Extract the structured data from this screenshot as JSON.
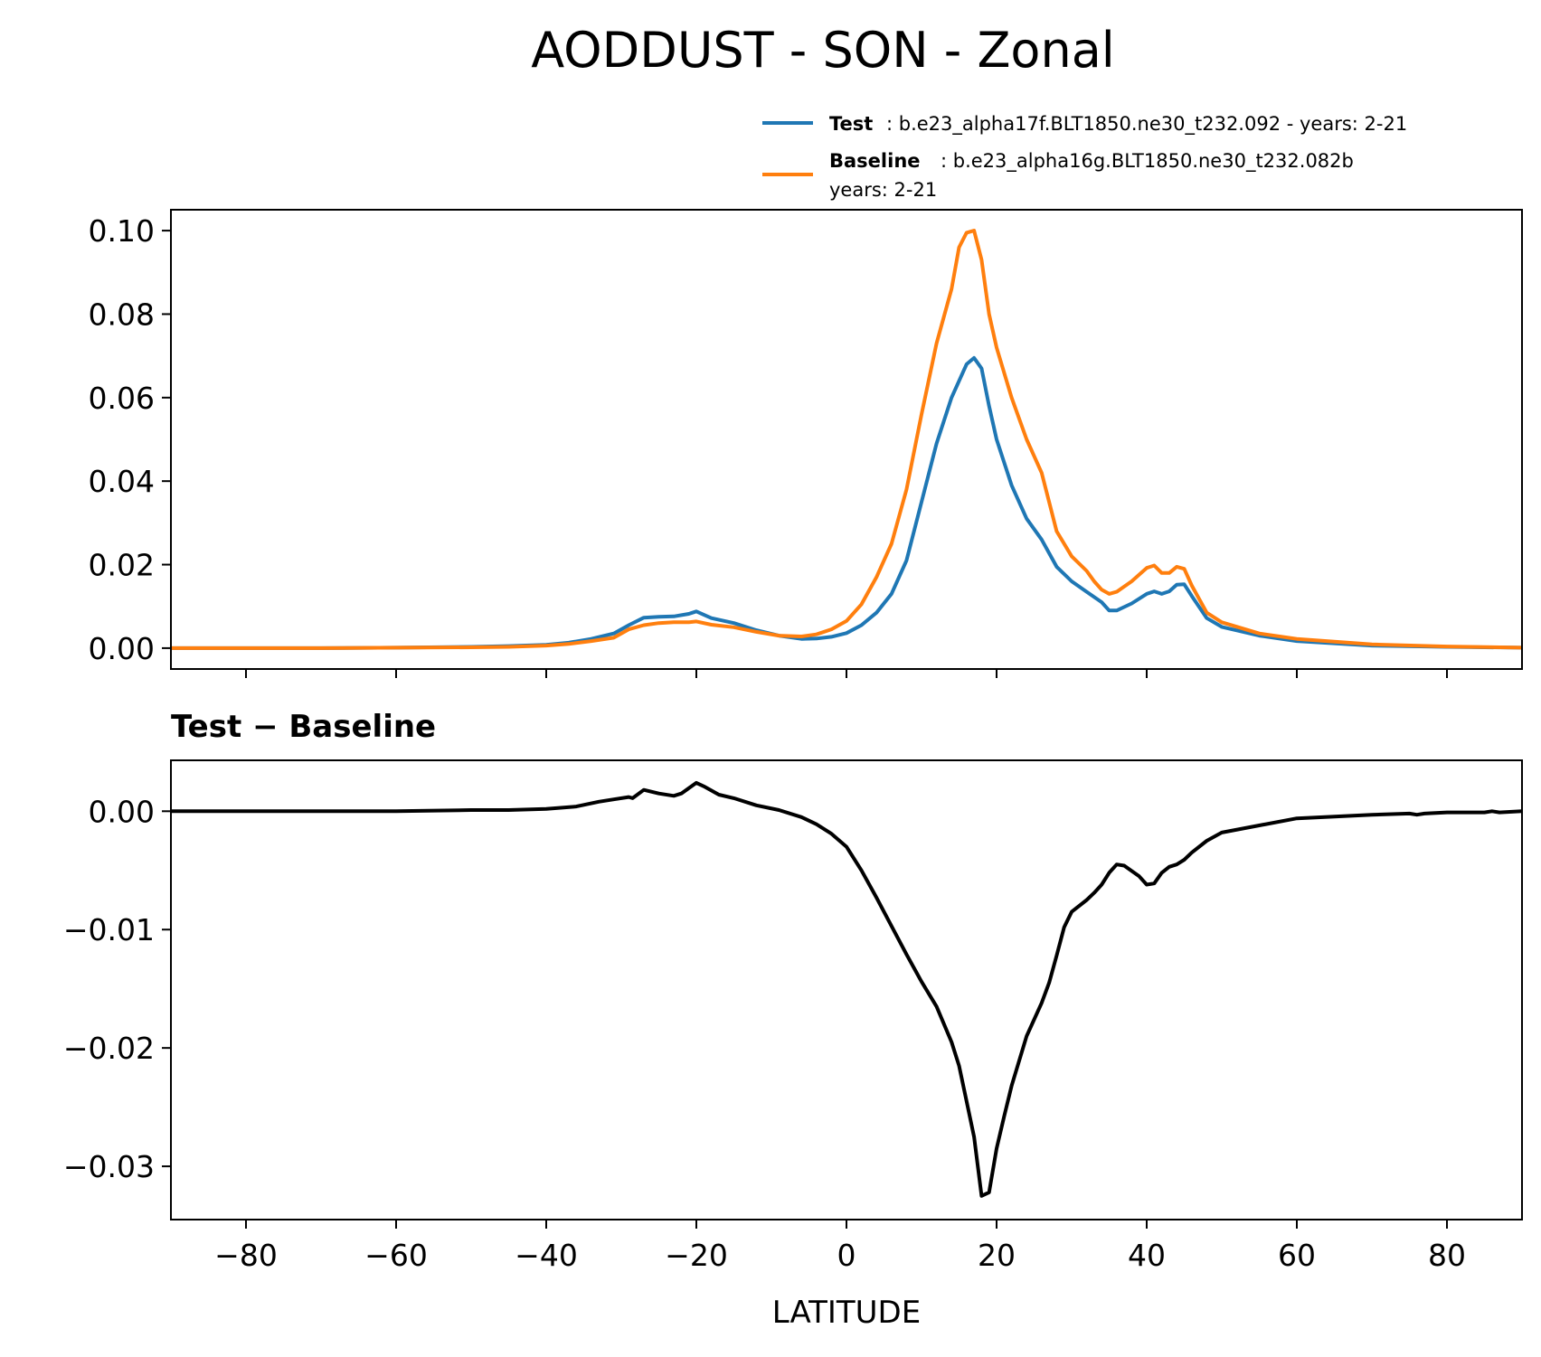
{
  "chart_data": [
    {
      "type": "line",
      "title": "AODDUST - SON - Zonal",
      "xlabel": "",
      "ylabel": "",
      "xlim": [
        -90,
        90
      ],
      "ylim": [
        -0.005,
        0.105
      ],
      "yticks": [
        0.0,
        0.02,
        0.04,
        0.06,
        0.08,
        0.1
      ],
      "ytick_labels": [
        "0.00",
        "0.02",
        "0.04",
        "0.06",
        "0.08",
        "0.10"
      ],
      "legend": {
        "placement": "above-right",
        "entries": [
          {
            "name": "Test",
            "desc": ": b.e23_alpha17f.BLT1850.ne30_t232.092 - years: 2-21",
            "desc2": ""
          },
          {
            "name": "Baseline",
            "desc": ": b.e23_alpha16g.BLT1850.ne30_t232.082b",
            "desc2": "years: 2-21"
          }
        ]
      },
      "series": [
        {
          "name": "Test",
          "color": "#1f77b4",
          "x": [
            -90,
            -80,
            -70,
            -60,
            -50,
            -45,
            -40,
            -37,
            -34,
            -31,
            -29,
            -27,
            -25,
            -23,
            -21,
            -20,
            -18,
            -15,
            -12,
            -9,
            -6,
            -4,
            -2,
            0,
            2,
            4,
            6,
            8,
            10,
            12,
            14,
            16,
            17,
            18,
            19,
            20,
            22,
            24,
            26,
            28,
            30,
            32,
            34,
            35,
            36,
            38,
            40,
            41,
            42,
            43,
            44,
            45,
            46,
            48,
            50,
            55,
            60,
            70,
            80,
            90
          ],
          "values": [
            0.0,
            0.0,
            0.0,
            0.0001,
            0.0003,
            0.0005,
            0.0008,
            0.0013,
            0.0022,
            0.0035,
            0.0055,
            0.0073,
            0.0075,
            0.0076,
            0.0082,
            0.0088,
            0.0072,
            0.006,
            0.0043,
            0.003,
            0.0022,
            0.0023,
            0.0027,
            0.0036,
            0.0055,
            0.0085,
            0.013,
            0.021,
            0.035,
            0.049,
            0.06,
            0.068,
            0.0695,
            0.067,
            0.058,
            0.05,
            0.039,
            0.031,
            0.026,
            0.0195,
            0.016,
            0.0135,
            0.011,
            0.009,
            0.009,
            0.0107,
            0.013,
            0.0136,
            0.013,
            0.0136,
            0.0152,
            0.0153,
            0.0125,
            0.0072,
            0.0051,
            0.003,
            0.0017,
            0.0006,
            0.0003,
            0.0001
          ]
        },
        {
          "name": "Baseline",
          "color": "#ff7f0e",
          "x": [
            -90,
            -80,
            -70,
            -60,
            -50,
            -45,
            -40,
            -37,
            -34,
            -31,
            -29,
            -27,
            -25,
            -23,
            -21,
            -20,
            -18,
            -15,
            -12,
            -9,
            -6,
            -4,
            -2,
            0,
            2,
            4,
            6,
            8,
            10,
            12,
            14,
            15,
            16,
            17,
            18,
            19,
            20,
            22,
            24,
            26,
            28,
            30,
            32,
            33,
            34,
            35,
            36,
            38,
            40,
            41,
            42,
            43,
            44,
            45,
            46,
            48,
            50,
            55,
            60,
            70,
            80,
            90
          ],
          "values": [
            0.0,
            0.0,
            0.0,
            0.0001,
            0.0002,
            0.0003,
            0.0006,
            0.001,
            0.0017,
            0.0025,
            0.0045,
            0.0055,
            0.006,
            0.0062,
            0.0062,
            0.0064,
            0.0056,
            0.005,
            0.0039,
            0.003,
            0.0028,
            0.0033,
            0.0045,
            0.0065,
            0.0105,
            0.017,
            0.025,
            0.038,
            0.056,
            0.073,
            0.086,
            0.096,
            0.0995,
            0.1,
            0.093,
            0.08,
            0.072,
            0.06,
            0.05,
            0.042,
            0.028,
            0.022,
            0.0185,
            0.016,
            0.014,
            0.013,
            0.0135,
            0.016,
            0.0192,
            0.0198,
            0.018,
            0.018,
            0.0195,
            0.019,
            0.015,
            0.0085,
            0.0062,
            0.0035,
            0.0022,
            0.0009,
            0.0004,
            0.0001
          ]
        }
      ]
    },
    {
      "type": "line",
      "title": "Test − Baseline",
      "xlabel": "LATITUDE",
      "ylabel": "",
      "xlim": [
        -90,
        90
      ],
      "ylim": [
        -0.0345,
        0.0043
      ],
      "xticks": [
        -80,
        -60,
        -40,
        -20,
        0,
        20,
        40,
        60,
        80
      ],
      "xtick_labels": [
        "−80",
        "−60",
        "−40",
        "−20",
        "0",
        "20",
        "40",
        "60",
        "80"
      ],
      "yticks": [
        0.0,
        -0.01,
        -0.02,
        -0.03
      ],
      "ytick_labels": [
        "0.00",
        "−0.01",
        "−0.02",
        "−0.03"
      ],
      "series": [
        {
          "name": "Test − Baseline",
          "color": "#000000",
          "x": [
            -90,
            -80,
            -70,
            -60,
            -50,
            -45,
            -40,
            -36,
            -33,
            -31,
            -29,
            -28.5,
            -27,
            -25,
            -23,
            -22,
            -20,
            -19,
            -17,
            -15,
            -12,
            -9,
            -6,
            -4,
            -2,
            0,
            2,
            4,
            6,
            8,
            10,
            12,
            14,
            15,
            16,
            17,
            18,
            19,
            20,
            21,
            22,
            24,
            26,
            27,
            28,
            29,
            30,
            32,
            33,
            34,
            35,
            36,
            37,
            39,
            40,
            41,
            42,
            43,
            44,
            45,
            46,
            48,
            50,
            55,
            60,
            70,
            75,
            76,
            77,
            80,
            85,
            86,
            87,
            90
          ],
          "values": [
            0.0,
            0.0,
            0.0,
            0.0,
            0.0001,
            0.0001,
            0.0002,
            0.0004,
            0.0008,
            0.001,
            0.0012,
            0.0011,
            0.0018,
            0.0015,
            0.0013,
            0.0015,
            0.0024,
            0.0021,
            0.0014,
            0.0011,
            0.0005,
            0.0001,
            -0.0005,
            -0.0011,
            -0.0019,
            -0.003,
            -0.005,
            -0.0073,
            -0.0097,
            -0.0121,
            -0.0144,
            -0.0165,
            -0.0195,
            -0.0215,
            -0.0245,
            -0.0275,
            -0.0325,
            -0.0322,
            -0.0285,
            -0.0258,
            -0.0232,
            -0.019,
            -0.0162,
            -0.0145,
            -0.0122,
            -0.0098,
            -0.0085,
            -0.0075,
            -0.0069,
            -0.0062,
            -0.0052,
            -0.0045,
            -0.0046,
            -0.0055,
            -0.0062,
            -0.0061,
            -0.0052,
            -0.0047,
            -0.0045,
            -0.0041,
            -0.0035,
            -0.0025,
            -0.0018,
            -0.0012,
            -0.0006,
            -0.0003,
            -0.0002,
            -0.0003,
            -0.0002,
            -0.0001,
            -0.0001,
            0.0,
            -0.0001,
            0.0
          ]
        }
      ]
    }
  ]
}
